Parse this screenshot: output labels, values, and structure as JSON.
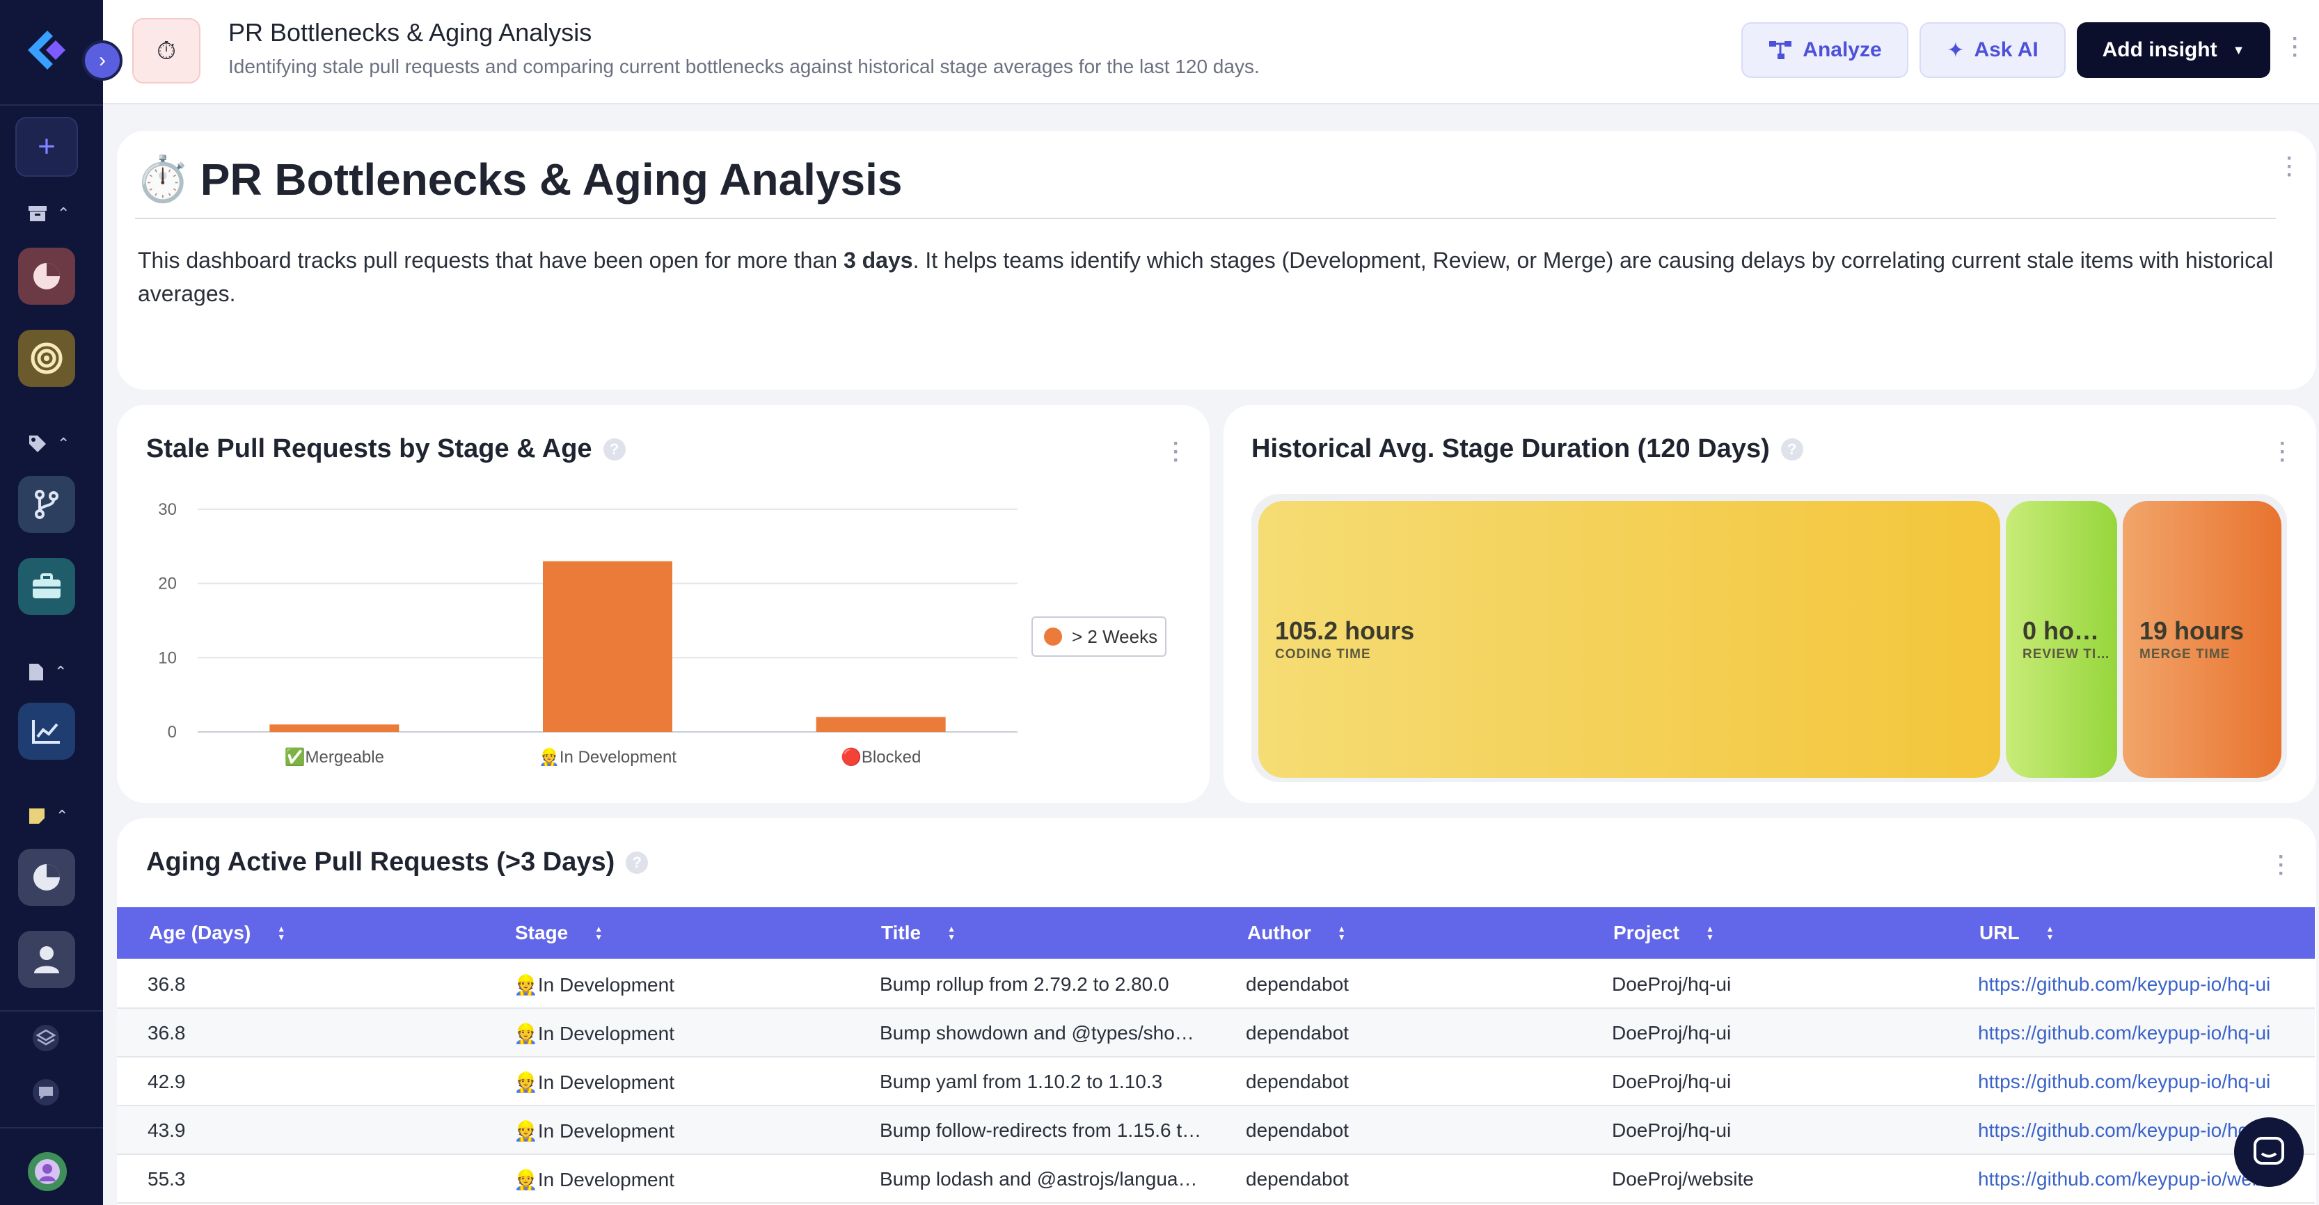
{
  "header": {
    "title": "PR Bottlenecks & Aging Analysis",
    "subtitle": "Identifying stale pull requests and comparing current bottlenecks against historical stage averages for the last 120 days.",
    "icon": "stopwatch-icon",
    "analyze_label": "Analyze",
    "ask_ai_label": "Ask AI",
    "add_insight_label": "Add insight"
  },
  "intro": {
    "icon": "⏱️",
    "title": "PR Bottlenecks & Aging Analysis",
    "text_before": "This dashboard tracks pull requests that have been open for more than ",
    "text_bold": "3 days",
    "text_after": ". It helps teams identify which stages (Development, Review, or Merge) are causing delays by correlating current stale items with historical averages."
  },
  "stale_card": {
    "title": "Stale Pull Requests by Stage & Age"
  },
  "history_card": {
    "title": "Historical Avg. Stage Duration (120 Days)"
  },
  "chart_data": [
    {
      "type": "bar",
      "title": "Stale Pull Requests by Stage & Age",
      "categories": [
        "✅Mergeable",
        "👷In Development",
        "🔴Blocked"
      ],
      "series": [
        {
          "name": "> 2 Weeks",
          "values": [
            1,
            23,
            2
          ],
          "color": "#ea7b38"
        }
      ],
      "ylim": [
        0,
        30
      ],
      "yticks": [
        0,
        10,
        20,
        30
      ],
      "grid": true,
      "legend": "right"
    },
    {
      "type": "treemap",
      "title": "Historical Avg. Stage Duration (120 Days)",
      "cells": [
        {
          "value": "105.2 hours",
          "label": "CODING TIME",
          "hours": 105.2
        },
        {
          "value": "0 ho…",
          "label": "REVIEW TI…",
          "hours": 0
        },
        {
          "value": "19 hours",
          "label": "MERGE TIME",
          "hours": 19
        }
      ]
    }
  ],
  "table": {
    "title": "Aging Active Pull Requests (>3 Days)",
    "columns": [
      "Age (Days)",
      "Stage",
      "Title",
      "Author",
      "Project",
      "URL"
    ],
    "rows": [
      [
        "36.8",
        "👷In Development",
        "Bump rollup from 2.79.2 to 2.80.0",
        "dependabot",
        "DoeProj/hq-ui",
        "https://github.com/keypup-io/hq-ui"
      ],
      [
        "36.8",
        "👷In Development",
        "Bump showdown and @types/sho…",
        "dependabot",
        "DoeProj/hq-ui",
        "https://github.com/keypup-io/hq-ui"
      ],
      [
        "42.9",
        "👷In Development",
        "Bump yaml from 1.10.2 to 1.10.3",
        "dependabot",
        "DoeProj/hq-ui",
        "https://github.com/keypup-io/hq-ui"
      ],
      [
        "43.9",
        "👷In Development",
        "Bump follow-redirects from 1.15.6 t…",
        "dependabot",
        "DoeProj/hq-ui",
        "https://github.com/keypup-io/hq-ui"
      ],
      [
        "55.3",
        "👷In Development",
        "Bump lodash and @astrojs/langua…",
        "dependabot",
        "DoeProj/website",
        "https://github.com/keypup-io/webs"
      ]
    ]
  },
  "sidebar": {
    "icons": [
      "plus-icon",
      "archive-icon",
      "pie-chart-icon",
      "target-icon",
      "tag-icon",
      "git-branch-icon",
      "briefcase-icon",
      "document-icon",
      "line-chart-icon",
      "note-icon",
      "pie-chart-icon",
      "user-icon",
      "layers-icon",
      "chat-icon"
    ]
  }
}
